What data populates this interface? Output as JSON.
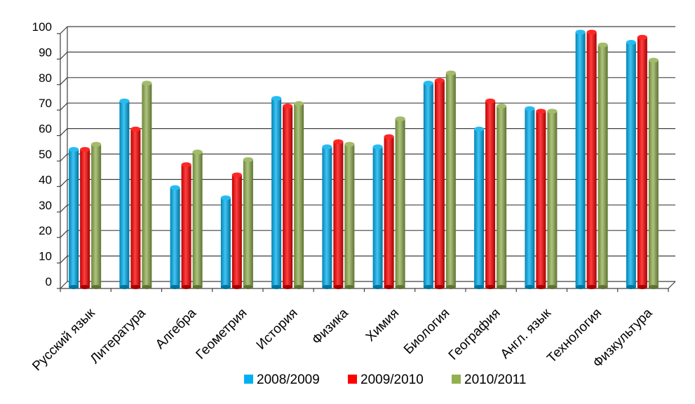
{
  "chart_data": {
    "type": "bar",
    "title": "",
    "xlabel": "",
    "ylabel": "",
    "ylim": [
      0,
      100
    ],
    "yticks": [
      0,
      10,
      20,
      30,
      40,
      50,
      60,
      70,
      80,
      90,
      100
    ],
    "grid": true,
    "legend_position": "bottom",
    "categories": [
      "Русский язык",
      "Литература",
      "Алгебра",
      "Геометрия",
      "История",
      "Физика",
      "Химия",
      "Биология",
      "География",
      "Англ. язык",
      "Технология",
      "Физкультура"
    ],
    "series": [
      {
        "name": "2008/2009",
        "color": "#00B0F0",
        "values": [
          54,
          73,
          39,
          35,
          74,
          55,
          55,
          80,
          62,
          70,
          100,
          96
        ]
      },
      {
        "name": "2009/2010",
        "color": "#FF0000",
        "values": [
          54,
          62,
          48,
          44,
          71,
          57,
          59,
          81,
          73,
          69,
          100,
          98
        ]
      },
      {
        "name": "2010/2011",
        "color": "#92B050",
        "values": [
          56,
          80,
          53,
          50,
          72,
          56,
          66,
          84,
          71,
          69,
          95,
          89
        ]
      }
    ]
  }
}
